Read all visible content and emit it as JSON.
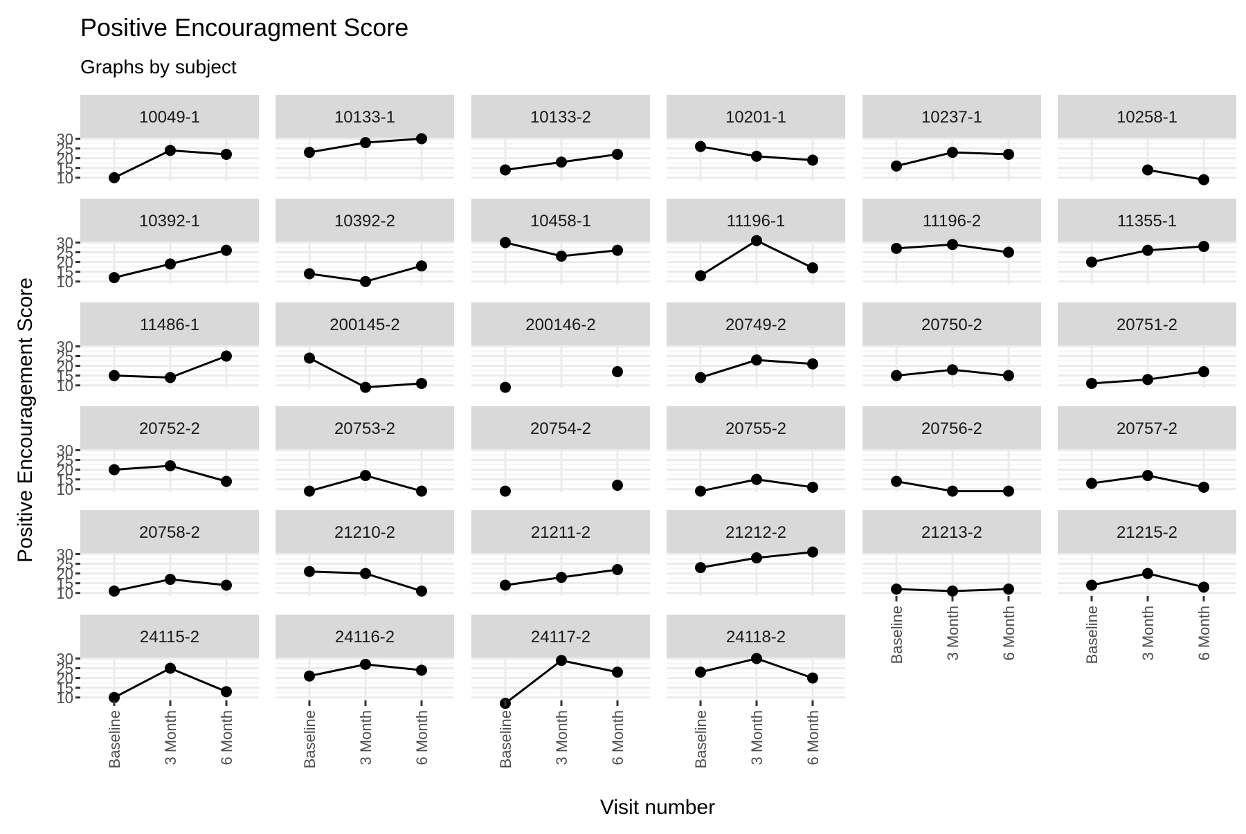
{
  "chart_data": {
    "type": "line",
    "title": "Positive Encouragment Score",
    "subtitle": "Graphs by subject",
    "xlabel": "Visit number",
    "ylabel": "Positive Encouragement Score",
    "x_categories": [
      "Baseline",
      "3 Month",
      "6 Month"
    ],
    "y_ticks": [
      10,
      15,
      20,
      25,
      30
    ],
    "ylim": [
      8.5,
      30.5
    ],
    "grid": true,
    "facets": [
      {
        "name": "10049-1",
        "values": [
          10,
          24,
          22
        ]
      },
      {
        "name": "10133-1",
        "values": [
          23,
          28,
          30
        ]
      },
      {
        "name": "10133-2",
        "values": [
          14,
          18,
          22
        ]
      },
      {
        "name": "10201-1",
        "values": [
          26,
          21,
          19
        ]
      },
      {
        "name": "10237-1",
        "values": [
          16,
          23,
          22
        ]
      },
      {
        "name": "10258-1",
        "values": [
          null,
          14,
          9
        ]
      },
      {
        "name": "10392-1",
        "values": [
          12,
          19,
          26
        ]
      },
      {
        "name": "10392-2",
        "values": [
          14,
          10,
          18
        ]
      },
      {
        "name": "10458-1",
        "values": [
          30,
          23,
          26
        ]
      },
      {
        "name": "11196-1",
        "values": [
          13,
          31,
          17
        ]
      },
      {
        "name": "11196-2",
        "values": [
          27,
          29,
          25
        ]
      },
      {
        "name": "11355-1",
        "values": [
          20,
          26,
          28
        ]
      },
      {
        "name": "11486-1",
        "values": [
          15,
          14,
          25
        ]
      },
      {
        "name": "200145-2",
        "values": [
          24,
          9,
          11
        ]
      },
      {
        "name": "200146-2",
        "values": [
          9,
          null,
          17
        ]
      },
      {
        "name": "20749-2",
        "values": [
          14,
          23,
          21
        ]
      },
      {
        "name": "20750-2",
        "values": [
          15,
          18,
          15
        ]
      },
      {
        "name": "20751-2",
        "values": [
          11,
          13,
          17
        ]
      },
      {
        "name": "20752-2",
        "values": [
          20,
          22,
          14
        ]
      },
      {
        "name": "20753-2",
        "values": [
          9,
          17,
          9
        ]
      },
      {
        "name": "20754-2",
        "values": [
          9,
          null,
          12
        ]
      },
      {
        "name": "20755-2",
        "values": [
          9,
          15,
          11
        ]
      },
      {
        "name": "20756-2",
        "values": [
          14,
          9,
          9
        ]
      },
      {
        "name": "20757-2",
        "values": [
          13,
          17,
          11
        ]
      },
      {
        "name": "20758-2",
        "values": [
          11,
          17,
          14
        ]
      },
      {
        "name": "21210-2",
        "values": [
          21,
          20,
          11
        ]
      },
      {
        "name": "21211-2",
        "values": [
          14,
          18,
          22
        ]
      },
      {
        "name": "21212-2",
        "values": [
          23,
          28,
          31
        ]
      },
      {
        "name": "21213-2",
        "values": [
          12,
          11,
          12
        ]
      },
      {
        "name": "21215-2",
        "values": [
          14,
          20,
          13
        ]
      },
      {
        "name": "24115-2",
        "values": [
          10,
          25,
          13
        ]
      },
      {
        "name": "24116-2",
        "values": [
          21,
          27,
          24
        ]
      },
      {
        "name": "24117-2",
        "values": [
          7,
          29,
          23
        ]
      },
      {
        "name": "24118-2",
        "values": [
          23,
          30,
          20
        ]
      }
    ]
  },
  "colors": {
    "strip_fill": "#d9d9d9",
    "grid_major": "#ebebeb",
    "grid_minor": "#f5f5f5",
    "line": "#000000",
    "axis_text": "#4d4d4d",
    "tick": "#333333"
  }
}
